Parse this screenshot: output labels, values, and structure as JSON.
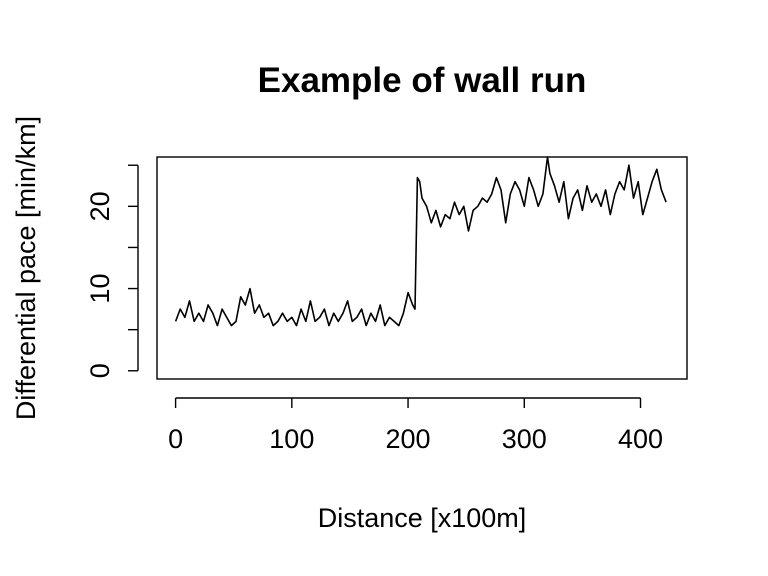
{
  "chart_data": {
    "type": "line",
    "title": "Example of wall run",
    "xlabel": "Distance [x100m]",
    "ylabel": "Differential pace [min/km]",
    "xlim": [
      -16,
      440
    ],
    "ylim": [
      -1,
      26
    ],
    "x_ticks": [
      0,
      100,
      200,
      300,
      400
    ],
    "y_ticks": [
      0,
      5,
      10,
      15,
      20,
      25
    ],
    "y_tick_labels_shown": [
      0,
      10,
      20
    ],
    "grid": false,
    "legend": "none",
    "series": [
      {
        "color": "#000000",
        "x": [
          0,
          4,
          8,
          12,
          16,
          20,
          24,
          28,
          32,
          36,
          40,
          44,
          48,
          52,
          56,
          60,
          64,
          68,
          72,
          76,
          80,
          84,
          88,
          92,
          96,
          100,
          104,
          108,
          112,
          116,
          120,
          124,
          128,
          132,
          136,
          140,
          144,
          148,
          152,
          156,
          160,
          164,
          168,
          172,
          176,
          180,
          184,
          188,
          192,
          196,
          200,
          204,
          206,
          208,
          210,
          212,
          216,
          220,
          224,
          228,
          232,
          236,
          240,
          244,
          248,
          252,
          256,
          260,
          264,
          268,
          272,
          276,
          280,
          284,
          288,
          292,
          296,
          300,
          304,
          308,
          312,
          316,
          320,
          322,
          326,
          330,
          334,
          338,
          342,
          346,
          350,
          354,
          358,
          362,
          366,
          370,
          374,
          378,
          382,
          386,
          390,
          394,
          398,
          402,
          406,
          410,
          414,
          418,
          422
        ],
        "y": [
          6.0,
          7.5,
          6.5,
          8.5,
          6.0,
          7.0,
          6.0,
          8.0,
          7.0,
          5.5,
          7.5,
          6.5,
          5.5,
          6.0,
          9.0,
          8.0,
          10.0,
          7.0,
          8.0,
          6.5,
          7.0,
          5.5,
          6.0,
          7.0,
          6.0,
          6.5,
          5.5,
          7.5,
          6.0,
          8.5,
          6.0,
          6.5,
          7.5,
          5.5,
          7.0,
          6.0,
          7.0,
          8.5,
          6.0,
          6.5,
          7.5,
          5.5,
          7.0,
          6.0,
          8.0,
          5.5,
          6.5,
          6.0,
          5.5,
          7.0,
          9.5,
          8.0,
          7.5,
          23.5,
          23.0,
          21.0,
          20.0,
          18.0,
          19.5,
          17.5,
          19.0,
          18.5,
          20.5,
          19.0,
          20.0,
          17.0,
          19.5,
          20.0,
          21.0,
          20.5,
          21.5,
          23.5,
          22.0,
          18.0,
          21.5,
          23.0,
          22.0,
          20.0,
          23.5,
          22.0,
          20.0,
          21.5,
          26.0,
          24.0,
          22.5,
          20.5,
          23.0,
          18.5,
          21.0,
          22.0,
          19.5,
          22.5,
          20.5,
          21.5,
          20.0,
          22.0,
          19.0,
          21.5,
          23.0,
          22.0,
          25.0,
          21.0,
          23.0,
          19.0,
          21.0,
          23.0,
          24.5,
          22.0,
          20.5
        ]
      }
    ]
  }
}
